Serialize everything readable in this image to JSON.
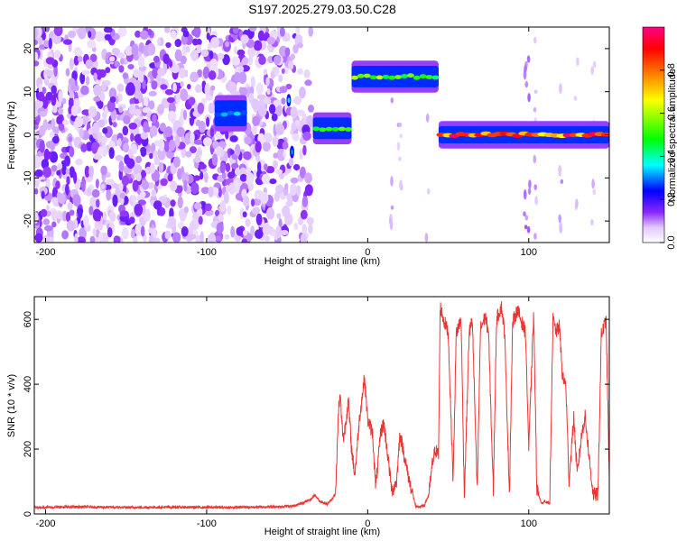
{
  "title": "S197.2025.279.03.50.C28",
  "chart_data": [
    {
      "type": "heatmap",
      "xlabel": "Height of straight line (km)",
      "ylabel": "Frequency (Hz)",
      "xlim": [
        -207,
        150
      ],
      "ylim": [
        -25,
        25
      ],
      "xticks": [
        -200,
        -100,
        0,
        100
      ],
      "yticks": [
        -20,
        -10,
        0,
        10,
        20
      ],
      "colorbar": {
        "label": "Normalized spectral amplitude",
        "range": [
          0,
          1
        ],
        "ticks": [
          0.0,
          0.2,
          0.4,
          0.6,
          0.8
        ],
        "colormap": [
          "#ffffff",
          "#e2c8ff",
          "#8a28ff",
          "#0000ff",
          "#00ffff",
          "#00ff00",
          "#ffff00",
          "#ff8000",
          "#ff0000",
          "#ff0088"
        ]
      },
      "features": [
        {
          "x_range": [
            -207,
            -35
          ],
          "freq_range": [
            -25,
            25
          ],
          "description_value": 0.12
        },
        {
          "x_range": [
            -95,
            -75
          ],
          "freq_range": [
            3,
            7
          ],
          "description_value": 0.3
        },
        {
          "x_range": [
            -34,
            -10
          ],
          "freq_range": [
            0,
            3
          ],
          "description_value": 0.5
        },
        {
          "x_range": [
            -10,
            44
          ],
          "freq_range": [
            12,
            15
          ],
          "description_value": 0.55
        },
        {
          "x_range": [
            44,
            150
          ],
          "freq_range": [
            -1,
            1
          ],
          "description_value": 0.85
        }
      ]
    },
    {
      "type": "line",
      "xlabel": "Height of straight line (km)",
      "ylabel": "SNR (10 * v/v)",
      "xlim": [
        -207,
        150
      ],
      "ylim": [
        0,
        670
      ],
      "xticks": [
        -200,
        -100,
        0,
        100
      ],
      "yticks": [
        0,
        200,
        400,
        600
      ],
      "color": "#ee3333",
      "series": [
        {
          "x": [
            -207,
            -180,
            -150,
            -120,
            -90,
            -60,
            -45,
            -40,
            -35,
            -33,
            -30,
            -25,
            -20,
            -18,
            -17,
            -16,
            -15,
            -12,
            -10,
            -8,
            -5,
            -2,
            0,
            3,
            5,
            8,
            10,
            12,
            15,
            18,
            20,
            25,
            30,
            35,
            38,
            40,
            42,
            44,
            45,
            47,
            50,
            53,
            55,
            58,
            60,
            63,
            65,
            68,
            70,
            73,
            75,
            78,
            80,
            83,
            85,
            88,
            90,
            93,
            95,
            98,
            100,
            103,
            105,
            108,
            110,
            113,
            115,
            117,
            119,
            121,
            123,
            125,
            128,
            130,
            133,
            135,
            138,
            140,
            143,
            145,
            148,
            150
          ],
          "y": [
            20,
            22,
            20,
            21,
            20,
            22,
            25,
            35,
            45,
            60,
            40,
            30,
            60,
            330,
            360,
            280,
            230,
            350,
            200,
            120,
            300,
            420,
            290,
            250,
            80,
            250,
            280,
            200,
            70,
            100,
            250,
            120,
            20,
            25,
            60,
            150,
            200,
            180,
            640,
            600,
            560,
            100,
            560,
            600,
            50,
            560,
            600,
            60,
            570,
            610,
            560,
            70,
            600,
            640,
            560,
            60,
            590,
            630,
            600,
            560,
            200,
            620,
            80,
            30,
            40,
            30,
            600,
            560,
            580,
            420,
            400,
            100,
            300,
            120,
            250,
            300,
            150,
            60,
            60,
            550,
            600,
            110
          ]
        }
      ]
    }
  ]
}
